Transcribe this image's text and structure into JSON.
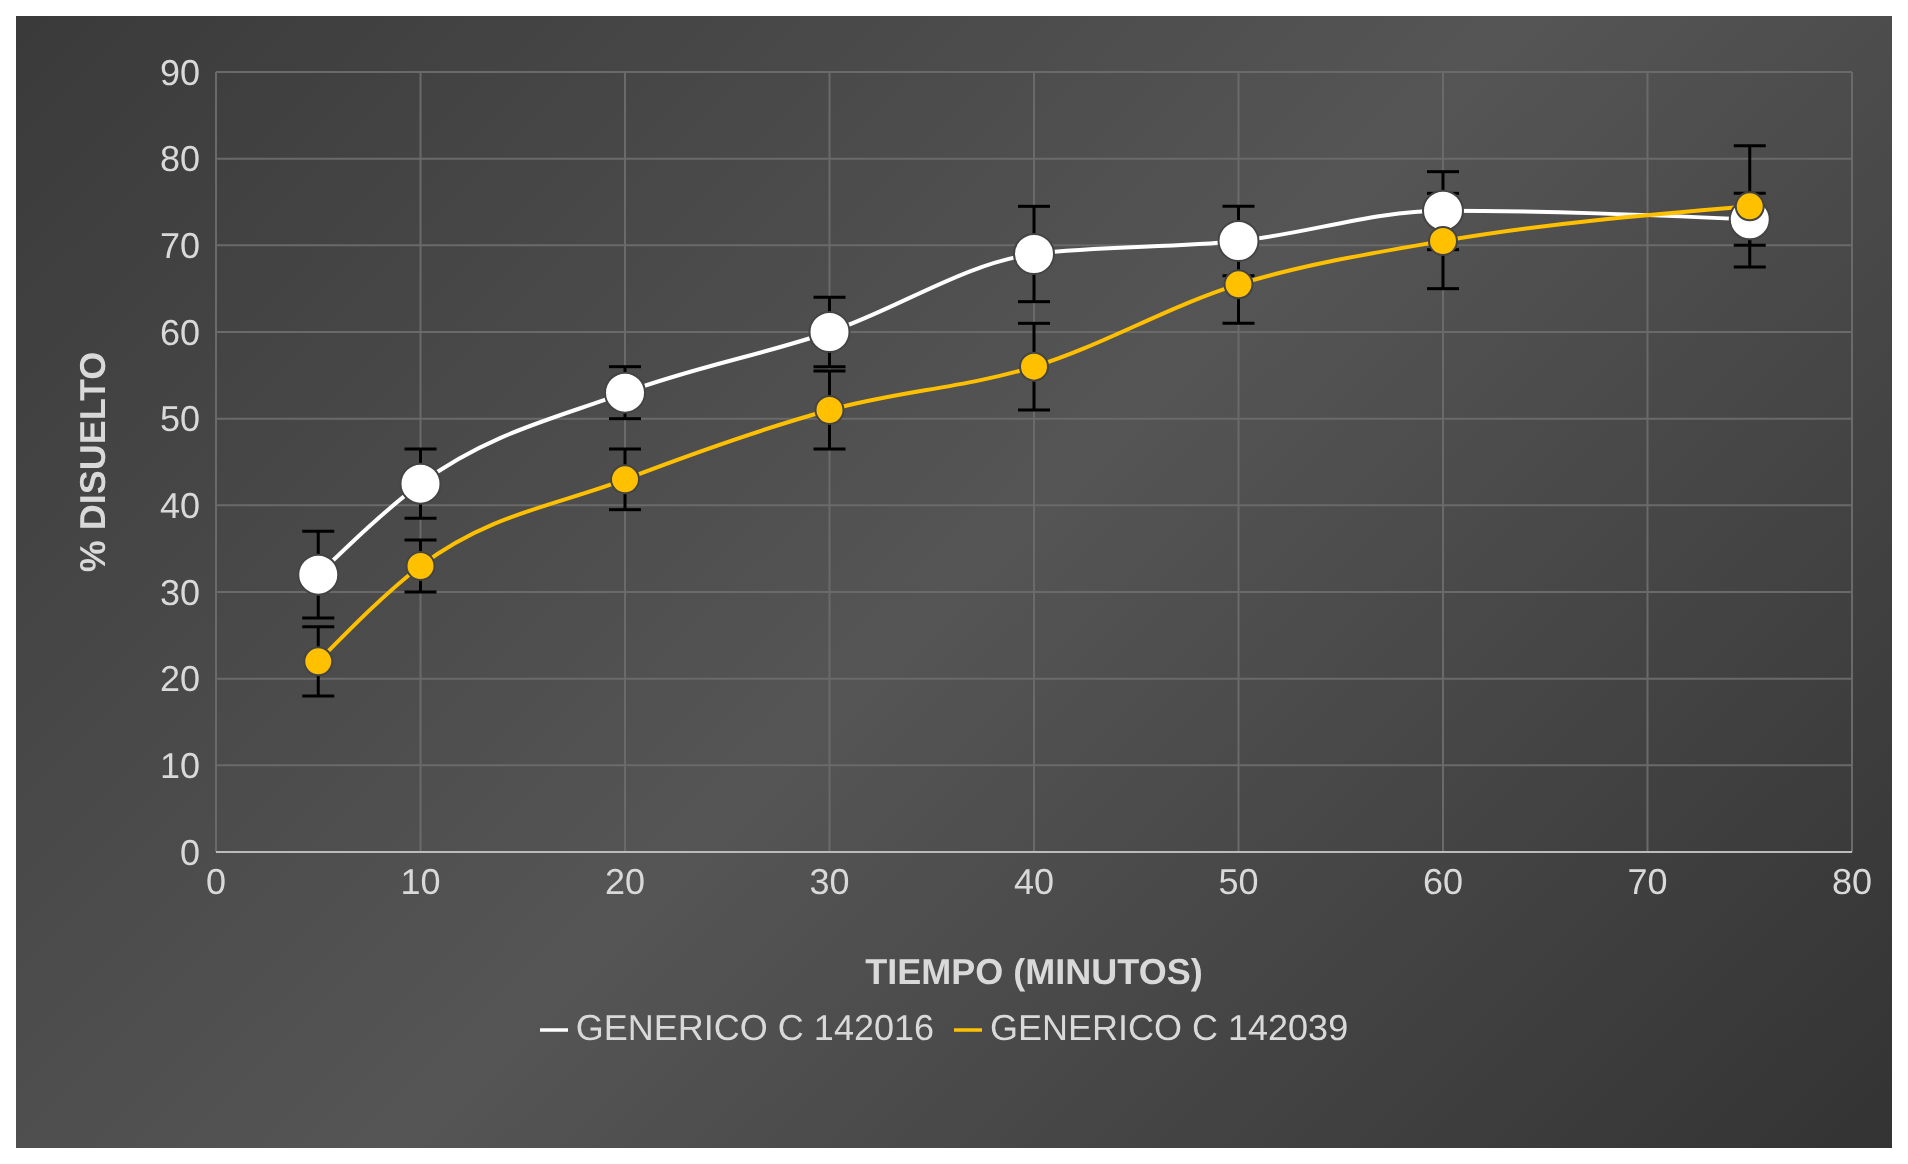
{
  "chart_data": {
    "type": "line",
    "xlabel": "TIEMPO (MINUTOS)",
    "ylabel": "% DISUELTO",
    "x": [
      5,
      10,
      20,
      30,
      40,
      50,
      60,
      75
    ],
    "xlim": [
      0,
      80
    ],
    "xticks": [
      0,
      10,
      20,
      30,
      40,
      50,
      60,
      70,
      80
    ],
    "ylim": [
      0,
      90
    ],
    "yticks": [
      0,
      10,
      20,
      30,
      40,
      50,
      60,
      70,
      80,
      90
    ],
    "grid": true,
    "legend": "bottom",
    "marker": "circle",
    "line_style": "solid",
    "series": [
      {
        "name": "GENERICO C 142016",
        "color": "#ffffff",
        "values": [
          32,
          42.5,
          53,
          60,
          69,
          70.5,
          74,
          73
        ],
        "errors": [
          5,
          4,
          3,
          4,
          5.5,
          4,
          4.5,
          3
        ]
      },
      {
        "name": "GENERICO C 142039",
        "color": "#ffc000",
        "values": [
          22,
          33,
          43,
          51,
          56,
          65.5,
          70.5,
          74.5
        ],
        "errors": [
          4,
          3,
          3.5,
          4.5,
          5,
          4.5,
          5.5,
          7
        ]
      }
    ]
  }
}
